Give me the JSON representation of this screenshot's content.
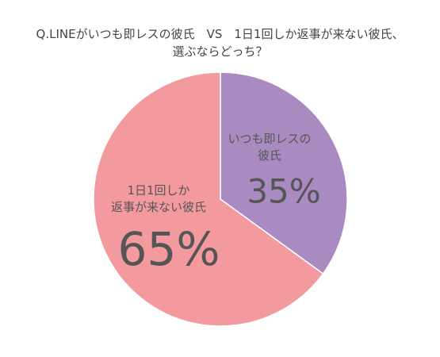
{
  "chart_data": {
    "type": "pie",
    "title": [
      "Q.LINEがいつも即レスの彼氏　VS　1日1回しか返事が来ない彼氏、",
      "選ぶならどっち？"
    ],
    "categories": [
      "いつも即レスの\n彼氏",
      "1日1回しか\n返事が来ない彼氏"
    ],
    "values": [
      35,
      65
    ],
    "value_labels": [
      "35%",
      "65%"
    ],
    "colors": [
      "#a98bc2",
      "#f39a9e"
    ]
  }
}
